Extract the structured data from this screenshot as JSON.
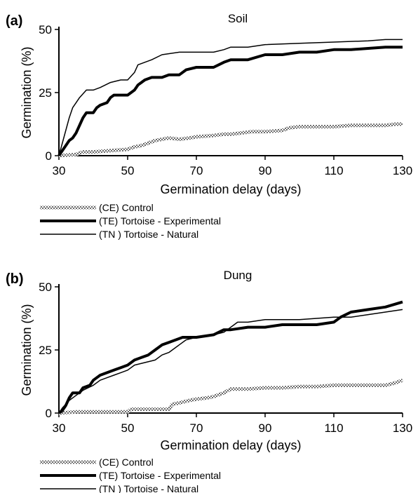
{
  "chart_data": [
    {
      "type": "line",
      "panel_label": "(a)",
      "title": "Soil",
      "xlabel": "Germination delay (days)",
      "ylabel": "Germination (%)",
      "xlim": [
        30,
        130
      ],
      "ylim": [
        0,
        50
      ],
      "xticks": [
        30,
        50,
        70,
        90,
        110,
        130
      ],
      "yticks": [
        0,
        25,
        50
      ],
      "grid": false,
      "legend_placement": "below",
      "series": [
        {
          "name": "(CE) Control",
          "style": "hatched",
          "color": "#8a8a8a",
          "points": [
            [
              30,
              0
            ],
            [
              35,
              0.5
            ],
            [
              37,
              1.5
            ],
            [
              40,
              1.5
            ],
            [
              45,
              2
            ],
            [
              50,
              2.5
            ],
            [
              52,
              3.5
            ],
            [
              54,
              4
            ],
            [
              56,
              5
            ],
            [
              58,
              6
            ],
            [
              60,
              6.5
            ],
            [
              62,
              7
            ],
            [
              65,
              6.5
            ],
            [
              68,
              7
            ],
            [
              70,
              7.5
            ],
            [
              75,
              8
            ],
            [
              78,
              8.5
            ],
            [
              80,
              8.5
            ],
            [
              83,
              9
            ],
            [
              86,
              9.5
            ],
            [
              90,
              9.5
            ],
            [
              95,
              10
            ],
            [
              97,
              11
            ],
            [
              100,
              11.5
            ],
            [
              105,
              11.5
            ],
            [
              110,
              11.5
            ],
            [
              115,
              12
            ],
            [
              120,
              12
            ],
            [
              125,
              12
            ],
            [
              128,
              12.5
            ],
            [
              130,
              12.5
            ]
          ]
        },
        {
          "name": "(TE) Tortoise - Experimental",
          "style": "thick",
          "color": "#000000",
          "points": [
            [
              30,
              0
            ],
            [
              31,
              2
            ],
            [
              32,
              4
            ],
            [
              33,
              6
            ],
            [
              34,
              7
            ],
            [
              35,
              9
            ],
            [
              36,
              12
            ],
            [
              37,
              15
            ],
            [
              38,
              17
            ],
            [
              40,
              17
            ],
            [
              41,
              19
            ],
            [
              42,
              20
            ],
            [
              44,
              21
            ],
            [
              45,
              23
            ],
            [
              46,
              24
            ],
            [
              50,
              24
            ],
            [
              51,
              25
            ],
            [
              52,
              26
            ],
            [
              53,
              28
            ],
            [
              54,
              29
            ],
            [
              55,
              30
            ],
            [
              57,
              31
            ],
            [
              60,
              31
            ],
            [
              62,
              32
            ],
            [
              65,
              32
            ],
            [
              67,
              34
            ],
            [
              70,
              35
            ],
            [
              75,
              35
            ],
            [
              78,
              37
            ],
            [
              80,
              38
            ],
            [
              85,
              38
            ],
            [
              90,
              40
            ],
            [
              95,
              40
            ],
            [
              100,
              41
            ],
            [
              105,
              41
            ],
            [
              110,
              42
            ],
            [
              115,
              42
            ],
            [
              120,
              42.5
            ],
            [
              125,
              43
            ],
            [
              130,
              43
            ]
          ]
        },
        {
          "name": "(TN ) Tortoise - Natural",
          "style": "thin",
          "color": "#000000",
          "points": [
            [
              30,
              0
            ],
            [
              31,
              5
            ],
            [
              32,
              10
            ],
            [
              33,
              15
            ],
            [
              34,
              19
            ],
            [
              35,
              21
            ],
            [
              36,
              23
            ],
            [
              38,
              26
            ],
            [
              40,
              26
            ],
            [
              42,
              27
            ],
            [
              45,
              29
            ],
            [
              48,
              30
            ],
            [
              50,
              30
            ],
            [
              52,
              33
            ],
            [
              53,
              36
            ],
            [
              55,
              37
            ],
            [
              57,
              38
            ],
            [
              60,
              40
            ],
            [
              65,
              41
            ],
            [
              70,
              41
            ],
            [
              75,
              41
            ],
            [
              78,
              42
            ],
            [
              80,
              43
            ],
            [
              85,
              43
            ],
            [
              90,
              44
            ],
            [
              100,
              44.5
            ],
            [
              110,
              45
            ],
            [
              120,
              45.5
            ],
            [
              125,
              46
            ],
            [
              130,
              46
            ]
          ]
        }
      ]
    },
    {
      "type": "line",
      "panel_label": "(b)",
      "title": "Dung",
      "xlabel": "Germination delay (days)",
      "ylabel": "Germination (%)",
      "xlim": [
        30,
        130
      ],
      "ylim": [
        0,
        50
      ],
      "xticks": [
        30,
        50,
        70,
        90,
        110,
        130
      ],
      "yticks": [
        0,
        25,
        50
      ],
      "grid": false,
      "legend_placement": "below",
      "series": [
        {
          "name": "(CE) Control",
          "style": "hatched",
          "color": "#8a8a8a",
          "points": [
            [
              30,
              0
            ],
            [
              35,
              0.5
            ],
            [
              40,
              0.5
            ],
            [
              45,
              0.5
            ],
            [
              50,
              0.5
            ],
            [
              51,
              1.5
            ],
            [
              55,
              1.5
            ],
            [
              60,
              1.5
            ],
            [
              62,
              1.5
            ],
            [
              63,
              3.5
            ],
            [
              65,
              4
            ],
            [
              68,
              5
            ],
            [
              70,
              5.5
            ],
            [
              73,
              6
            ],
            [
              75,
              6.5
            ],
            [
              78,
              8
            ],
            [
              80,
              9.5
            ],
            [
              85,
              9.5
            ],
            [
              90,
              10
            ],
            [
              95,
              10
            ],
            [
              100,
              10.5
            ],
            [
              105,
              10.5
            ],
            [
              110,
              11
            ],
            [
              115,
              11
            ],
            [
              120,
              11
            ],
            [
              125,
              11
            ],
            [
              128,
              12
            ],
            [
              130,
              13
            ]
          ]
        },
        {
          "name": "(TE) Tortoise - Experimental",
          "style": "thick",
          "color": "#000000",
          "points": [
            [
              30,
              0
            ],
            [
              31,
              1
            ],
            [
              32,
              3
            ],
            [
              33,
              6
            ],
            [
              34,
              8
            ],
            [
              36,
              8
            ],
            [
              37,
              10
            ],
            [
              39,
              11
            ],
            [
              40,
              13
            ],
            [
              42,
              15
            ],
            [
              44,
              16
            ],
            [
              46,
              17
            ],
            [
              48,
              18
            ],
            [
              50,
              19
            ],
            [
              52,
              21
            ],
            [
              54,
              22
            ],
            [
              56,
              23
            ],
            [
              58,
              25
            ],
            [
              60,
              27
            ],
            [
              62,
              28
            ],
            [
              64,
              29
            ],
            [
              66,
              30
            ],
            [
              70,
              30
            ],
            [
              75,
              31
            ],
            [
              78,
              33
            ],
            [
              80,
              33
            ],
            [
              85,
              34
            ],
            [
              90,
              34
            ],
            [
              95,
              35
            ],
            [
              100,
              35
            ],
            [
              105,
              35
            ],
            [
              110,
              36
            ],
            [
              112,
              38
            ],
            [
              115,
              40
            ],
            [
              120,
              41
            ],
            [
              125,
              42
            ],
            [
              130,
              44
            ]
          ]
        },
        {
          "name": "(TN ) Tortoise - Natural",
          "style": "thin",
          "color": "#000000",
          "points": [
            [
              30,
              0
            ],
            [
              31,
              2
            ],
            [
              33,
              5
            ],
            [
              35,
              7
            ],
            [
              37,
              9
            ],
            [
              40,
              11
            ],
            [
              42,
              13
            ],
            [
              44,
              14
            ],
            [
              46,
              15
            ],
            [
              48,
              16
            ],
            [
              50,
              17
            ],
            [
              52,
              19
            ],
            [
              55,
              20
            ],
            [
              58,
              21
            ],
            [
              60,
              23
            ],
            [
              62,
              24
            ],
            [
              65,
              27
            ],
            [
              67,
              29
            ],
            [
              70,
              30
            ],
            [
              75,
              31
            ],
            [
              78,
              32
            ],
            [
              80,
              34
            ],
            [
              82,
              36
            ],
            [
              85,
              36
            ],
            [
              90,
              37
            ],
            [
              95,
              37
            ],
            [
              100,
              37
            ],
            [
              110,
              38
            ],
            [
              115,
              38
            ],
            [
              120,
              39
            ],
            [
              125,
              40
            ],
            [
              130,
              41
            ]
          ]
        }
      ]
    }
  ]
}
